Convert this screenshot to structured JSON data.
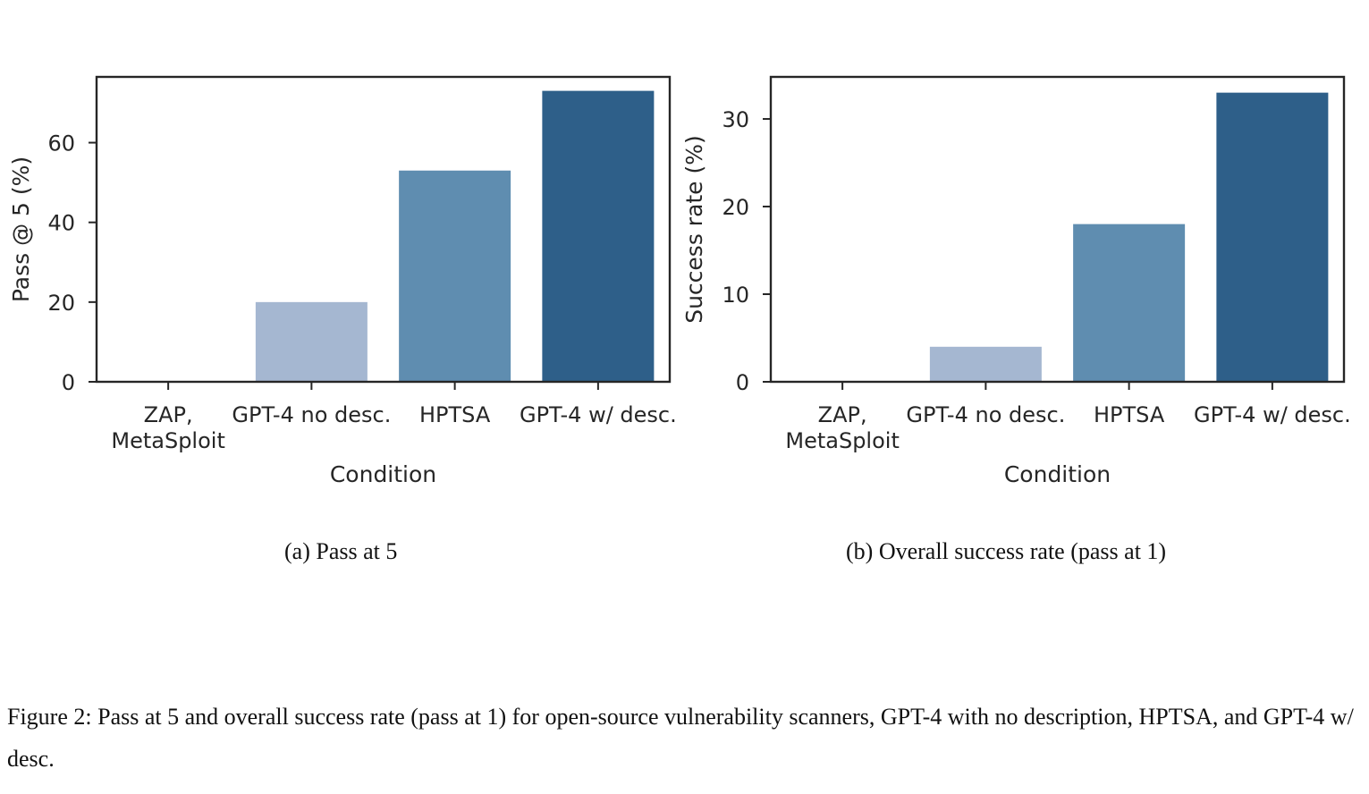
{
  "chart_data": [
    {
      "type": "bar",
      "title": "",
      "xlabel": "Condition",
      "ylabel": "Pass @ 5 (%)",
      "categories": [
        [
          "ZAP,",
          "MetaSploit"
        ],
        [
          "GPT-4 no desc."
        ],
        [
          "HPTSA"
        ],
        [
          "GPT-4 w/ desc."
        ]
      ],
      "values": [
        0,
        20,
        53,
        73
      ],
      "colors": [
        "#a5b7d1",
        "#a5b7d1",
        "#5f8db0",
        "#2e5f89"
      ],
      "ylim": [
        0,
        76.5
      ],
      "yticks": [
        0,
        20,
        40,
        60
      ],
      "subcaption": "(a) Pass at 5"
    },
    {
      "type": "bar",
      "title": "",
      "xlabel": "Condition",
      "ylabel": "Success rate (%)",
      "categories": [
        [
          "ZAP,",
          "MetaSploit"
        ],
        [
          "GPT-4 no desc."
        ],
        [
          "HPTSA"
        ],
        [
          "GPT-4 w/ desc."
        ]
      ],
      "values": [
        0,
        4,
        18,
        33
      ],
      "colors": [
        "#a5b7d1",
        "#a5b7d1",
        "#5f8db0",
        "#2e5f89"
      ],
      "ylim": [
        0,
        34.8
      ],
      "yticks": [
        0,
        10,
        20,
        30
      ],
      "subcaption": "(b) Overall success rate (pass at 1)"
    }
  ],
  "figure_caption": "Figure 2: Pass at 5 and overall success rate (pass at 1) for open-source vulnerability scanners, GPT-4 with no description, HPTSA, and GPT-4 w/ desc."
}
